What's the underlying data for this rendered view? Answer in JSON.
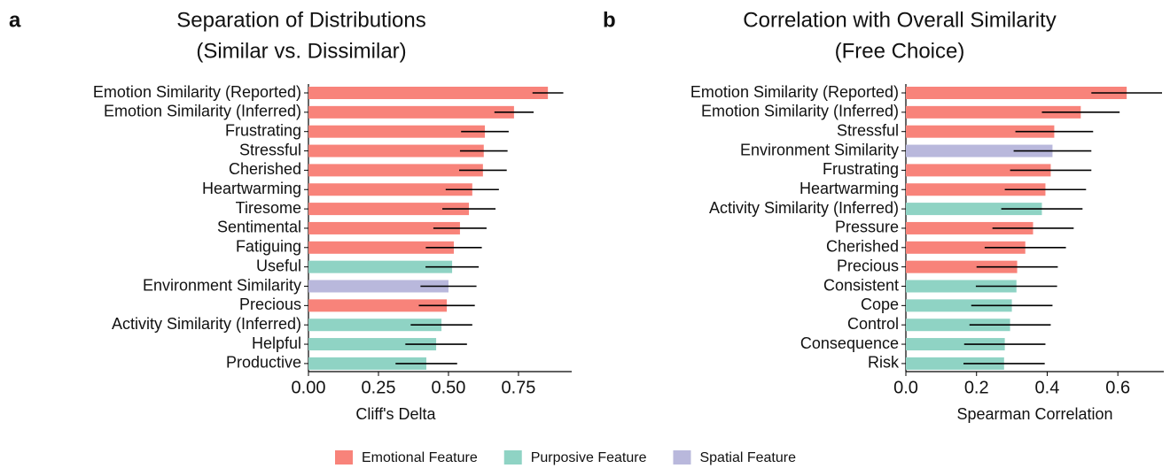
{
  "chart_data": [
    {
      "type": "barh",
      "panel_label": "a",
      "title": "Separation of Distributions",
      "subtitle": "(Similar vs. Dissimilar)",
      "xlabel": "Cliff's Delta",
      "categories": [
        "Emotion Similarity (Reported)",
        "Emotion Similarity (Inferred)",
        "Frustrating",
        "Stressful",
        "Cherished",
        "Heartwarming",
        "Tiresome",
        "Sentimental",
        "Fatiguing",
        "Useful",
        "Environment Similarity",
        "Precious",
        "Activity Similarity (Inferred)",
        "Helpful",
        "Productive"
      ],
      "values": [
        0.855,
        0.734,
        0.63,
        0.626,
        0.623,
        0.585,
        0.573,
        0.541,
        0.519,
        0.513,
        0.5,
        0.494,
        0.475,
        0.456,
        0.421
      ],
      "errors": [
        0.055,
        0.07,
        0.085,
        0.085,
        0.085,
        0.095,
        0.095,
        0.095,
        0.1,
        0.095,
        0.1,
        0.1,
        0.11,
        0.11,
        0.11
      ],
      "colors": [
        "#f8837a",
        "#f8837a",
        "#f8837a",
        "#f8837a",
        "#f8837a",
        "#f8837a",
        "#f8837a",
        "#f8837a",
        "#f8837a",
        "#8fd3c4",
        "#b9b8dc",
        "#f8837a",
        "#8fd3c4",
        "#8fd3c4",
        "#8fd3c4"
      ],
      "xlim": [
        0,
        0.94
      ],
      "xticks": [
        {
          "value": 0,
          "label": "0.00"
        },
        0.25,
        {
          "value": 0.5,
          "label": "0.50"
        },
        0.75
      ]
    },
    {
      "type": "barh",
      "panel_label": "b",
      "title": "Correlation with Overall Similarity",
      "subtitle": "(Free Choice)",
      "xlabel": "Spearman Correlation",
      "categories": [
        "Emotion Similarity (Reported)",
        "Emotion Similarity (Inferred)",
        "Stressful",
        "Environment Similarity",
        "Frustrating",
        "Heartwarming",
        "Activity Similarity (Inferred)",
        "Pressure",
        "Cherished",
        "Precious",
        "Consistent",
        "Cope",
        "Control",
        "Consequence",
        "Risk"
      ],
      "values": [
        0.625,
        0.495,
        0.42,
        0.415,
        0.41,
        0.395,
        0.385,
        0.36,
        0.338,
        0.315,
        0.313,
        0.3,
        0.295,
        0.28,
        0.278
      ],
      "errors": [
        0.1,
        0.11,
        0.11,
        0.11,
        0.115,
        0.115,
        0.115,
        0.115,
        0.115,
        0.115,
        0.115,
        0.115,
        0.115,
        0.115,
        0.115
      ],
      "colors": [
        "#f8837a",
        "#f8837a",
        "#f8837a",
        "#b9b8dc",
        "#f8837a",
        "#f8837a",
        "#8fd3c4",
        "#f8837a",
        "#f8837a",
        "#f8837a",
        "#8fd3c4",
        "#8fd3c4",
        "#8fd3c4",
        "#8fd3c4",
        "#8fd3c4"
      ],
      "xlim": [
        0,
        0.73
      ],
      "xticks": [
        {
          "value": 0,
          "label": "0.0"
        },
        0.2,
        0.4,
        0.6
      ]
    }
  ],
  "legend": [
    {
      "name": "Emotional Feature",
      "color": "#f8837a"
    },
    {
      "name": "Purposive Feature",
      "color": "#8fd3c4"
    },
    {
      "name": "Spatial Feature",
      "color": "#b9b8dc"
    }
  ]
}
